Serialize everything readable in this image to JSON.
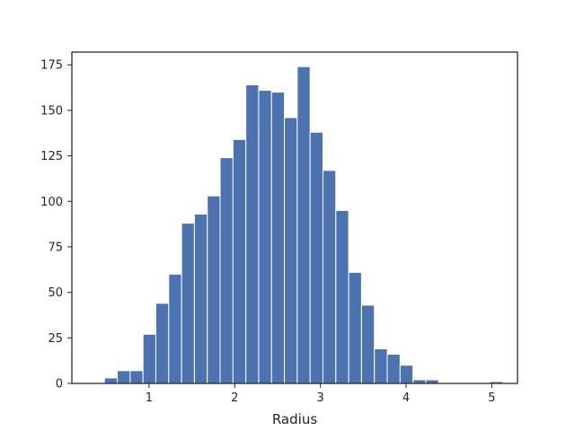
{
  "chart_data": {
    "type": "bar",
    "title": "",
    "xlabel": "Radius",
    "ylabel": "",
    "xlim": [
      0.1,
      5.3
    ],
    "ylim": [
      0,
      182
    ],
    "grid": false,
    "bar_color": "#4c72b0",
    "bin_width": 0.15,
    "bins": [
      {
        "x0": 0.48,
        "value": 3
      },
      {
        "x0": 0.63,
        "value": 7
      },
      {
        "x0": 0.78,
        "value": 7
      },
      {
        "x0": 0.93,
        "value": 27
      },
      {
        "x0": 1.08,
        "value": 44
      },
      {
        "x0": 1.23,
        "value": 60
      },
      {
        "x0": 1.38,
        "value": 88
      },
      {
        "x0": 1.53,
        "value": 93
      },
      {
        "x0": 1.68,
        "value": 103
      },
      {
        "x0": 1.83,
        "value": 124
      },
      {
        "x0": 1.98,
        "value": 134
      },
      {
        "x0": 2.13,
        "value": 164
      },
      {
        "x0": 2.28,
        "value": 161
      },
      {
        "x0": 2.43,
        "value": 160
      },
      {
        "x0": 2.58,
        "value": 146
      },
      {
        "x0": 2.73,
        "value": 174
      },
      {
        "x0": 2.88,
        "value": 138
      },
      {
        "x0": 3.03,
        "value": 117
      },
      {
        "x0": 3.18,
        "value": 95
      },
      {
        "x0": 3.33,
        "value": 61
      },
      {
        "x0": 3.48,
        "value": 43
      },
      {
        "x0": 3.63,
        "value": 19
      },
      {
        "x0": 3.78,
        "value": 16
      },
      {
        "x0": 3.93,
        "value": 10
      },
      {
        "x0": 4.08,
        "value": 2
      },
      {
        "x0": 4.23,
        "value": 2
      },
      {
        "x0": 4.38,
        "value": 0
      },
      {
        "x0": 4.53,
        "value": 0
      },
      {
        "x0": 4.68,
        "value": 0
      },
      {
        "x0": 4.83,
        "value": 0
      },
      {
        "x0": 4.98,
        "value": 1
      }
    ],
    "x_ticks": [
      "1",
      "2",
      "3",
      "4",
      "5"
    ],
    "y_ticks": [
      "0",
      "25",
      "50",
      "75",
      "100",
      "125",
      "150",
      "175"
    ]
  }
}
